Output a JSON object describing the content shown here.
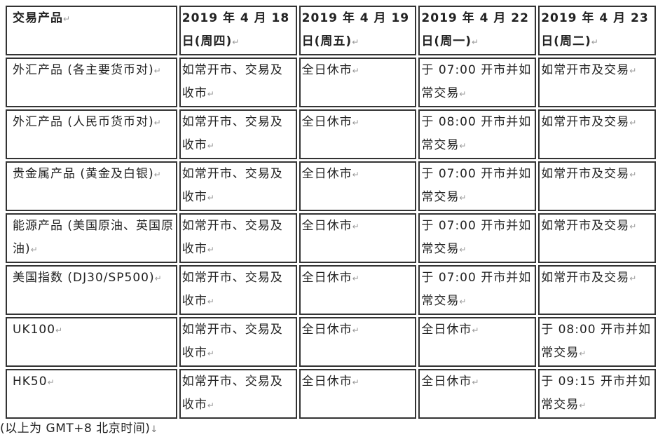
{
  "table": {
    "headers": [
      "交易产品",
      "2019 年 4 月 18 日(周四)",
      "2019 年 4 月 19 日(周五)",
      "2019 年 4 月 22 日(周一)",
      "2019 年 4 月 23 日(周二)"
    ],
    "rows": [
      [
        "外汇产品 (各主要货币对)",
        "如常开市、交易及收市",
        "全日休市",
        "于 07:00 开市并如常交易",
        "如常开市及交易"
      ],
      [
        "外汇产品 (人民币货币对)",
        "如常开市、交易及收市",
        "全日休市",
        "于 08:00 开市并如常交易",
        "如常开市及交易"
      ],
      [
        "贵金属产品 (黄金及白银)",
        "如常开市、交易及收市",
        "全日休市",
        "于 07:00 开市并如常交易",
        "如常开市及交易"
      ],
      [
        "能源产品 (美国原油、英国原油)",
        "如常开市、交易及收市",
        "全日休市",
        "于 07:00 开市并如常交易",
        "如常开市及交易"
      ],
      [
        "美国指数 (DJ30/SP500)",
        "如常开市、交易及收市",
        "全日休市",
        "于 07:00 开市并如常交易",
        "如常开市及交易"
      ],
      [
        "UK100",
        "如常开市、交易及收市",
        "全日休市",
        "全日休市",
        "于 08:00 开市并如常交易"
      ],
      [
        "HK50",
        "如常开市、交易及收市",
        "全日休市",
        "全日休市",
        "于 09:15 开市并如常交易"
      ]
    ]
  },
  "footer": "(以上为 GMT+8  北京时间)"
}
